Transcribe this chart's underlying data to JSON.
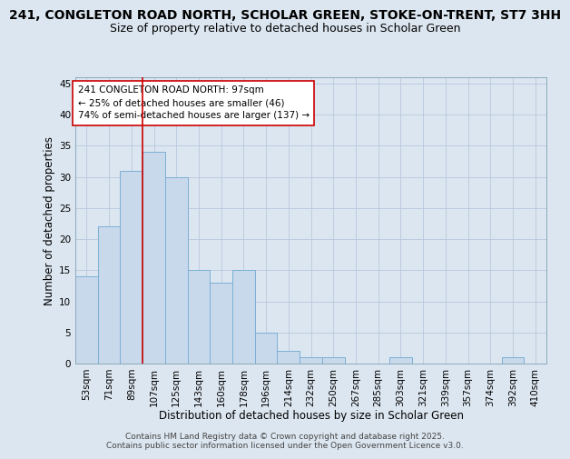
{
  "title1": "241, CONGLETON ROAD NORTH, SCHOLAR GREEN, STOKE-ON-TRENT, ST7 3HH",
  "title2": "Size of property relative to detached houses in Scholar Green",
  "xlabel": "Distribution of detached houses by size in Scholar Green",
  "ylabel": "Number of detached properties",
  "categories": [
    "53sqm",
    "71sqm",
    "89sqm",
    "107sqm",
    "125sqm",
    "143sqm",
    "160sqm",
    "178sqm",
    "196sqm",
    "214sqm",
    "232sqm",
    "250sqm",
    "267sqm",
    "285sqm",
    "303sqm",
    "321sqm",
    "339sqm",
    "357sqm",
    "374sqm",
    "392sqm",
    "410sqm"
  ],
  "values": [
    14,
    22,
    31,
    34,
    30,
    15,
    13,
    15,
    5,
    2,
    1,
    1,
    0,
    0,
    1,
    0,
    0,
    0,
    0,
    1,
    0
  ],
  "bar_color": "#c9d9ec",
  "bar_edge_color": "#7bafd4",
  "grid_color": "#b8c8dc",
  "background_color": "#dce6f0",
  "vline_color": "#cc0000",
  "annotation_text": "241 CONGLETON ROAD NORTH: 97sqm\n← 25% of detached houses are smaller (46)\n74% of semi-detached houses are larger (137) →",
  "annotation_box_color": "#ffffff",
  "annotation_box_edge": "#cc0000",
  "ylim": [
    0,
    46
  ],
  "yticks": [
    0,
    5,
    10,
    15,
    20,
    25,
    30,
    35,
    40,
    45
  ],
  "footer": "Contains HM Land Registry data © Crown copyright and database right 2025.\nContains public sector information licensed under the Open Government Licence v3.0.",
  "title1_fontsize": 10,
  "title2_fontsize": 9,
  "xlabel_fontsize": 8.5,
  "ylabel_fontsize": 8.5,
  "tick_fontsize": 7.5,
  "annotation_fontsize": 7.5,
  "footer_fontsize": 6.5
}
